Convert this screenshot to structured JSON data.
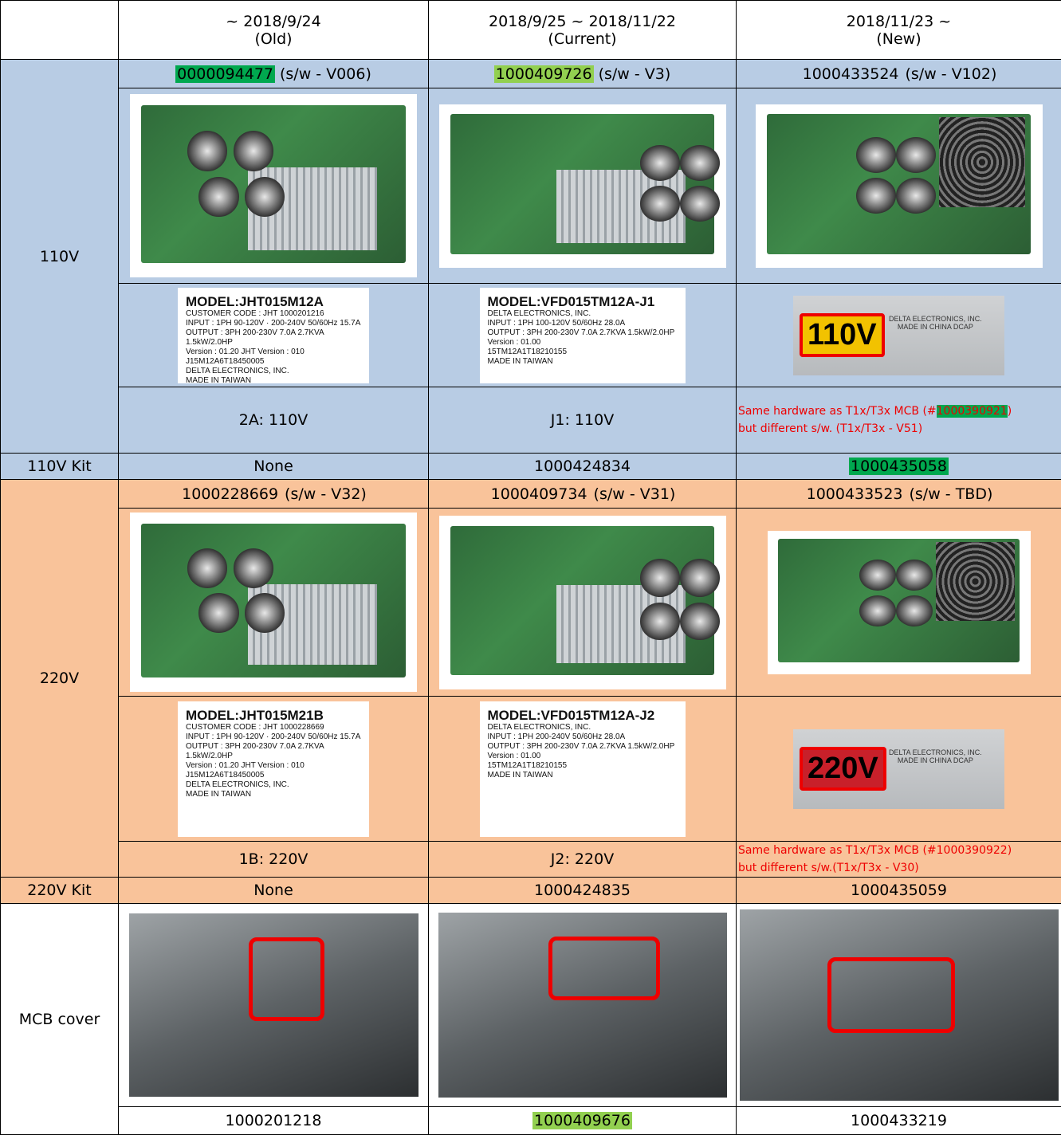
{
  "header": {
    "columns": [
      {
        "date": "~ 2018/9/24",
        "label": "(Old)"
      },
      {
        "date": "2018/9/25 ~ 2018/11/22",
        "label": "(Current)"
      },
      {
        "date": "2018/11/23 ~",
        "label": "(New)"
      }
    ]
  },
  "sections": [
    {
      "label": "110V",
      "background": "#b8cce4",
      "parts": [
        {
          "number": "0000094477",
          "software": "(s/w - V006)",
          "highlight": "#00a84f"
        },
        {
          "number": "1000409726",
          "software": "(s/w - V3)",
          "highlight": "#92d050"
        },
        {
          "number": "1000433524",
          "software": "(s/w - V102)"
        }
      ],
      "nameplates": [
        {
          "lines": [
            "MODEL:JHT015M12A",
            "CUSTOMER CODE : JHT 1000201216",
            "INPUT : 1PH 90-120V · 200-240V 50/60Hz 15.7A",
            "OUTPUT : 3PH 200-230V 7.0A 2.7KVA 1.5kW/2.0HP",
            "Version : 01.20 JHT Version : 010",
            "J15M12A6T18450005",
            "DELTA ELECTRONICS, INC.",
            "MADE IN TAIWAN"
          ]
        },
        {
          "lines": [
            "MODEL:VFD015TM12A-J1",
            "DELTA ELECTRONICS, INC.",
            "INPUT : 1PH 100-120V 50/60Hz 28.0A",
            "OUTPUT : 3PH 200-230V 7.0A 2.7KVA 1.5kW/2.0HP",
            "Version : 01.00",
            "15TM12A1T18210155",
            "MADE IN TAIWAN"
          ]
        },
        {
          "badge": "110V",
          "badge_color": "#f2c200",
          "lines": [
            "DELTA ELECTRONICS, INC.",
            "MADE IN CHINA DCAP"
          ]
        }
      ],
      "notes": [
        "2A: 110V",
        "J1: 110V",
        {
          "lines": [
            [
              "Same hardware as T1x/T3x MCB (#",
              "1000390921",
              ")"
            ],
            [
              "but different s/w. (T1x/T3x - V51)"
            ]
          ],
          "highlight": "#00a84f"
        }
      ],
      "kit_label": "110V Kit",
      "kits": [
        {
          "number": "None"
        },
        {
          "number": "1000424834"
        },
        {
          "number": "1000435058",
          "highlight": "#00a84f"
        }
      ]
    },
    {
      "label": "220V",
      "background": "#f9c39a",
      "parts": [
        {
          "number": "1000228669",
          "software": "(s/w - V32)"
        },
        {
          "number": "1000409734",
          "software": "(s/w - V31)"
        },
        {
          "number": "1000433523",
          "software": "(s/w - TBD)"
        }
      ],
      "nameplates": [
        {
          "lines": [
            "MODEL:JHT015M21B",
            "CUSTOMER CODE : JHT 1000228669",
            "INPUT : 1PH 90-120V · 200-240V 50/60Hz 15.7A",
            "OUTPUT : 3PH 200-230V 7.0A 2.7KVA 1.5kW/2.0HP",
            "Version : 01.20 JHT Version : 010",
            "J15M12A6T18450005",
            "DELTA ELECTRONICS, INC.",
            "MADE IN TAIWAN"
          ]
        },
        {
          "lines": [
            "MODEL:VFD015TM12A-J2",
            "DELTA ELECTRONICS, INC.",
            "INPUT : 1PH 200-240V 50/60Hz 28.0A",
            "OUTPUT : 3PH 200-230V 7.0A 2.7KVA 1.5kW/2.0HP",
            "Version : 01.00",
            "15TM12A1T18210155",
            "MADE IN TAIWAN"
          ]
        },
        {
          "badge": "220V",
          "badge_color": "#c8202a",
          "lines": [
            "DELTA ELECTRONICS, INC.",
            "MADE IN CHINA DCAP"
          ]
        }
      ],
      "notes": [
        "1B: 220V",
        "J2: 220V",
        {
          "lines": [
            [
              "Same hardware as T1x/T3x MCB (#1000390922)"
            ],
            [
              "but different s/w.(T1x/T3x - V30)"
            ]
          ]
        }
      ],
      "kit_label": "220V Kit",
      "kits": [
        {
          "number": "None"
        },
        {
          "number": "1000424835"
        },
        {
          "number": "1000435059"
        }
      ]
    }
  ],
  "mcb": {
    "label": "MCB cover",
    "numbers": [
      {
        "number": "1000201218"
      },
      {
        "number": "1000409676",
        "highlight": "#92d050"
      },
      {
        "number": "1000433219"
      }
    ]
  }
}
